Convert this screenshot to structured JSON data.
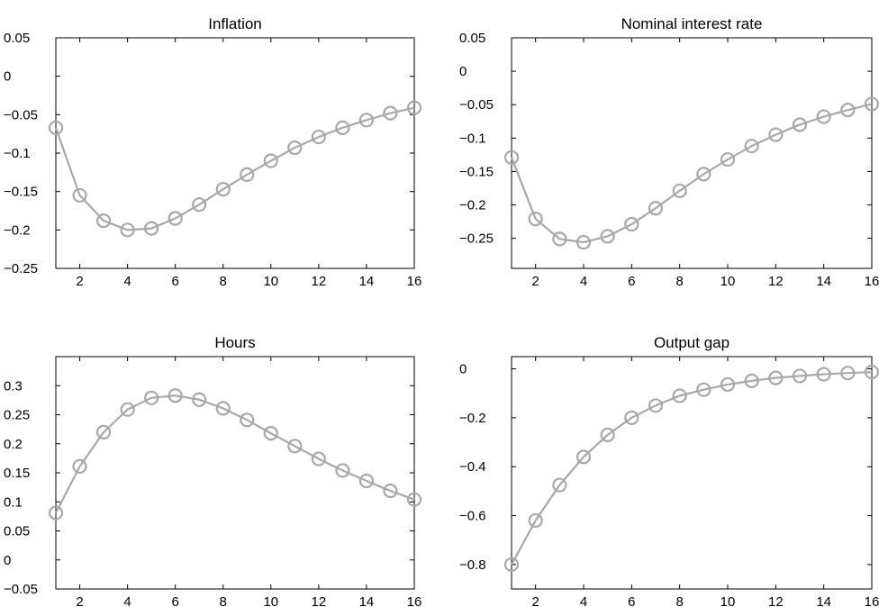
{
  "chart_data": [
    {
      "type": "line",
      "title": "Inflation",
      "x": [
        1,
        2,
        3,
        4,
        5,
        6,
        7,
        8,
        9,
        10,
        11,
        12,
        13,
        14,
        15,
        16
      ],
      "series": [
        {
          "values": [
            -0.067,
            -0.155,
            -0.188,
            -0.2,
            -0.198,
            -0.185,
            -0.167,
            -0.147,
            -0.128,
            -0.11,
            -0.093,
            -0.079,
            -0.067,
            -0.057,
            -0.048,
            -0.041
          ]
        }
      ],
      "xlim": [
        1,
        16
      ],
      "ylim": [
        -0.25,
        0.05
      ],
      "xticks": [
        2,
        4,
        6,
        8,
        10,
        12,
        14,
        16
      ],
      "xtick_labels": [
        "2",
        "4",
        "6",
        "8",
        "10",
        "12",
        "14",
        "16"
      ],
      "yticks": [
        0.05,
        0,
        -0.05,
        -0.1,
        -0.15,
        -0.2,
        -0.25
      ],
      "ytick_labels": [
        "0.05",
        "0",
        "−0.05",
        "−0.1",
        "−0.15",
        "−0.2",
        "−0.25"
      ],
      "grid": false,
      "marker": "circle"
    },
    {
      "type": "line",
      "title": "Nominal interest rate",
      "x": [
        1,
        2,
        3,
        4,
        5,
        6,
        7,
        8,
        9,
        10,
        11,
        12,
        13,
        14,
        15,
        16
      ],
      "series": [
        {
          "values": [
            -0.129,
            -0.221,
            -0.251,
            -0.256,
            -0.247,
            -0.229,
            -0.205,
            -0.179,
            -0.154,
            -0.132,
            -0.112,
            -0.095,
            -0.08,
            -0.068,
            -0.058,
            -0.049
          ]
        }
      ],
      "xlim": [
        1,
        16
      ],
      "ylim": [
        -0.295,
        0.05
      ],
      "xticks": [
        2,
        4,
        6,
        8,
        10,
        12,
        14,
        16
      ],
      "xtick_labels": [
        "2",
        "4",
        "6",
        "8",
        "10",
        "12",
        "14",
        "16"
      ],
      "yticks": [
        0.05,
        0,
        -0.05,
        -0.1,
        -0.15,
        -0.2,
        -0.25
      ],
      "ytick_labels": [
        "0.05",
        "0",
        "−0.05",
        "−0.1",
        "−0.15",
        "−0.2",
        "−0.25"
      ],
      "grid": false,
      "marker": "circle"
    },
    {
      "type": "line",
      "title": "Hours",
      "x": [
        1,
        2,
        3,
        4,
        5,
        6,
        7,
        8,
        9,
        10,
        11,
        12,
        13,
        14,
        15,
        16
      ],
      "series": [
        {
          "values": [
            0.081,
            0.161,
            0.22,
            0.259,
            0.279,
            0.283,
            0.276,
            0.261,
            0.241,
            0.218,
            0.196,
            0.174,
            0.154,
            0.136,
            0.119,
            0.104
          ]
        }
      ],
      "xlim": [
        1,
        16
      ],
      "ylim": [
        -0.05,
        0.35
      ],
      "xticks": [
        2,
        4,
        6,
        8,
        10,
        12,
        14,
        16
      ],
      "xtick_labels": [
        "2",
        "4",
        "6",
        "8",
        "10",
        "12",
        "14",
        "16"
      ],
      "yticks": [
        0.3,
        0.25,
        0.2,
        0.15,
        0.1,
        0.05,
        0,
        -0.05
      ],
      "ytick_labels": [
        "0.3",
        "0.25",
        "0.2",
        "0.15",
        "0.1",
        "0.05",
        "0",
        "−0.05"
      ],
      "grid": false,
      "marker": "circle"
    },
    {
      "type": "line",
      "title": "Output gap",
      "x": [
        1,
        2,
        3,
        4,
        5,
        6,
        7,
        8,
        9,
        10,
        11,
        12,
        13,
        14,
        15,
        16
      ],
      "series": [
        {
          "values": [
            -0.8,
            -0.62,
            -0.475,
            -0.36,
            -0.27,
            -0.2,
            -0.15,
            -0.11,
            -0.085,
            -0.064,
            -0.049,
            -0.037,
            -0.029,
            -0.022,
            -0.017,
            -0.013
          ]
        }
      ],
      "xlim": [
        1,
        16
      ],
      "ylim": [
        -0.9,
        0.05
      ],
      "xticks": [
        2,
        4,
        6,
        8,
        10,
        12,
        14,
        16
      ],
      "xtick_labels": [
        "2",
        "4",
        "6",
        "8",
        "10",
        "12",
        "14",
        "16"
      ],
      "yticks": [
        0,
        -0.2,
        -0.4,
        -0.6,
        -0.8
      ],
      "ytick_labels": [
        "0",
        "−0.2",
        "−0.4",
        "−0.6",
        "−0.8"
      ],
      "grid": false,
      "marker": "circle"
    }
  ],
  "colors": {
    "series": "#a8a8a8",
    "axes": "#000000",
    "background": "#ffffff"
  }
}
